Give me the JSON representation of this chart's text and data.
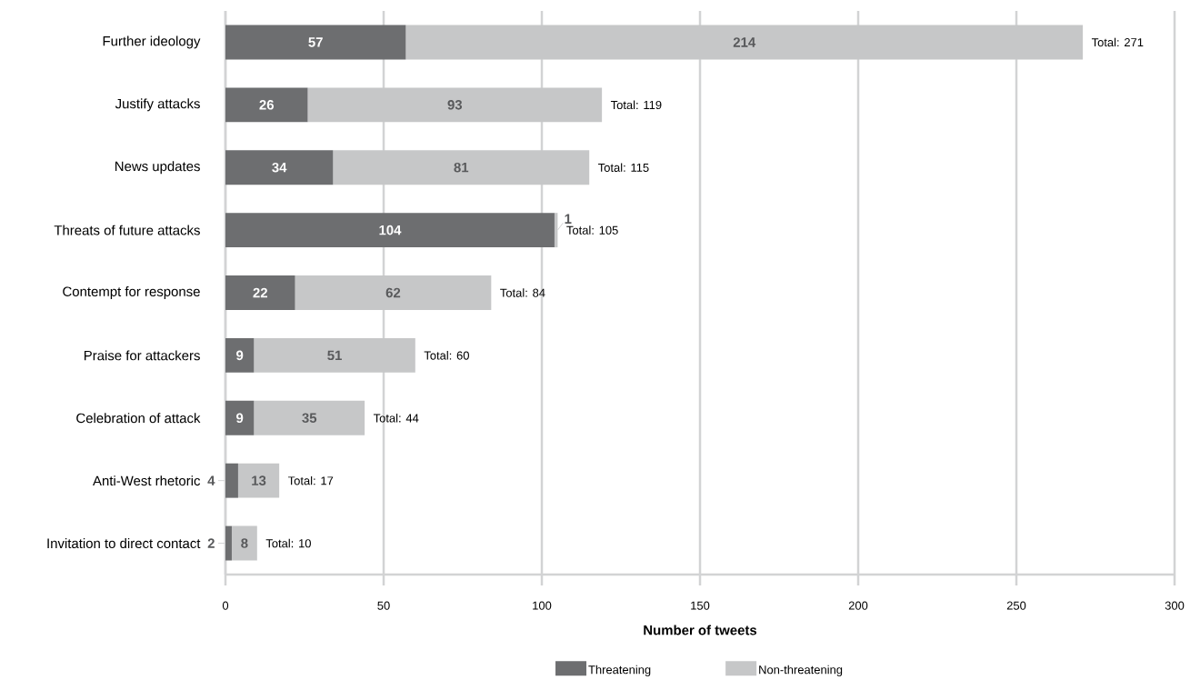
{
  "chart_data": {
    "type": "bar",
    "orientation": "horizontal",
    "stacked": true,
    "categories": [
      "Further ideology",
      "Justify attacks",
      "News updates",
      "Threats of future attacks",
      "Contempt for response",
      "Praise for attackers",
      "Celebration of attack",
      "Anti-West rhetoric",
      "Invitation to direct contact"
    ],
    "series": [
      {
        "name": "Threatening",
        "color": "#6d6e70",
        "values": [
          57,
          26,
          34,
          104,
          22,
          9,
          9,
          4,
          2
        ]
      },
      {
        "name": "Non-threatening",
        "color": "#c6c7c8",
        "values": [
          214,
          93,
          81,
          1,
          62,
          51,
          35,
          13,
          8
        ]
      }
    ],
    "totals": [
      "Total: 271",
      "Total: 119",
      "Total: 115",
      "Total: 105",
      "Total: 84",
      "Total: 60",
      "Total: 44",
      "Total: 17",
      "Total: 10"
    ],
    "data_labels": true,
    "xlabel": "Number of tweets",
    "xlim": [
      0,
      300
    ],
    "xticks": [
      0,
      50,
      100,
      150,
      200,
      250,
      300
    ],
    "grid": "x",
    "legend": "bottom"
  }
}
